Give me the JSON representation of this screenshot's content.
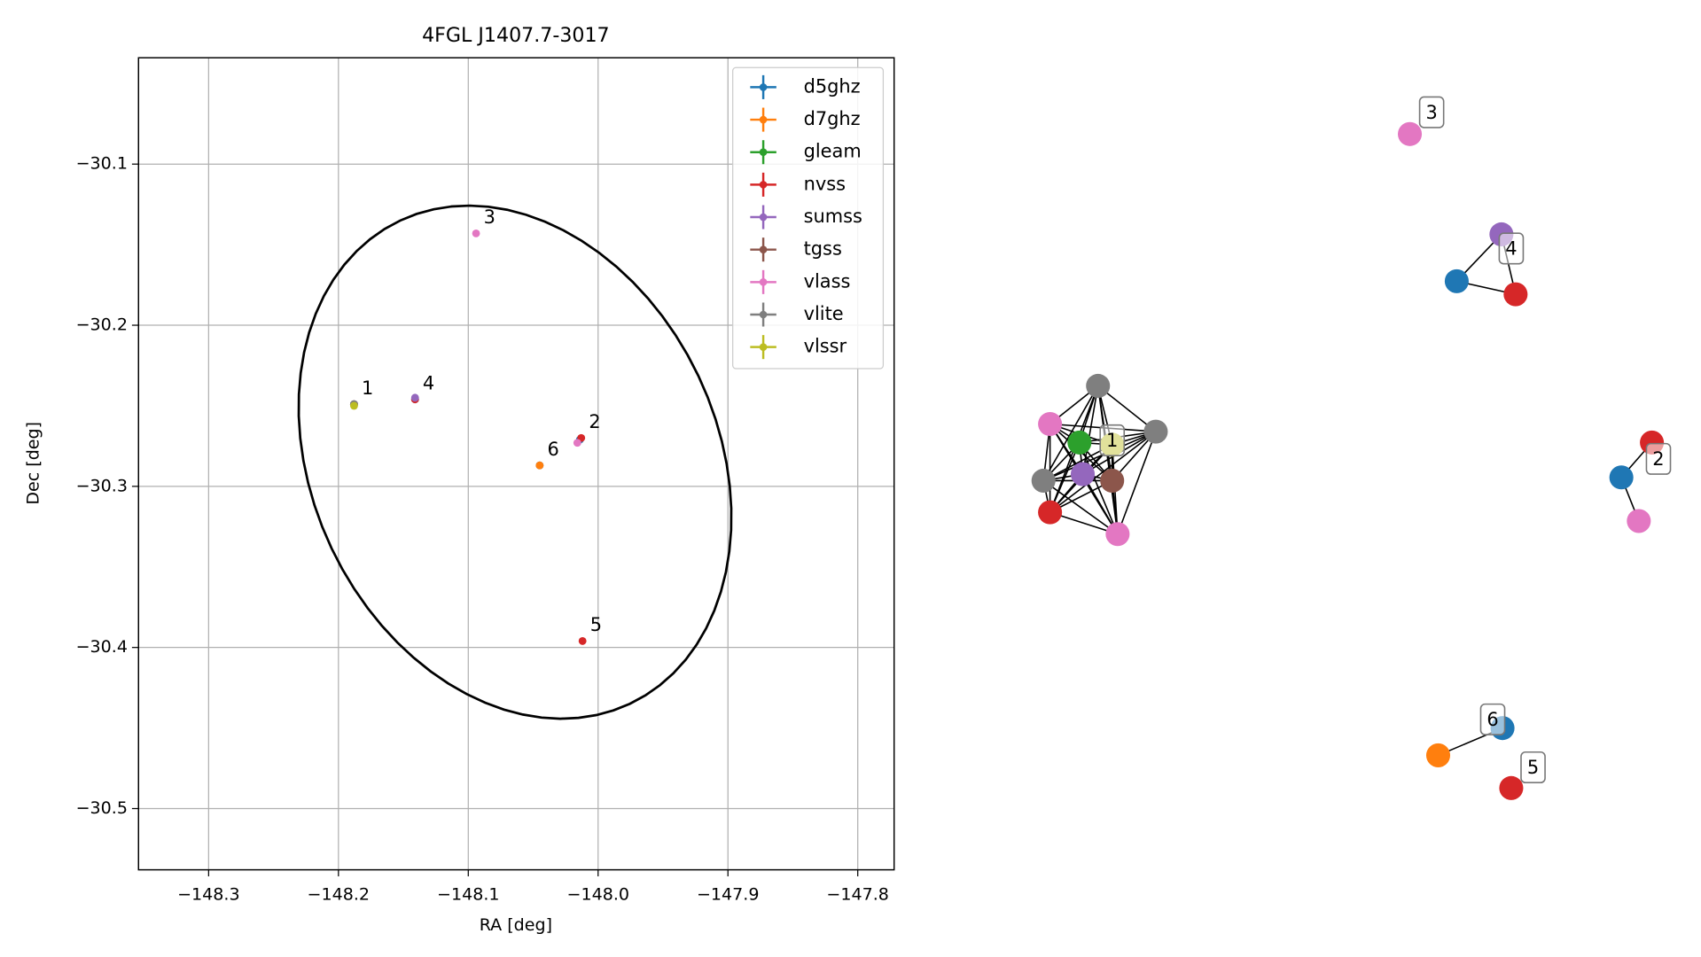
{
  "chart_data": [
    {
      "type": "scatter",
      "title": "4FGL J1407.7-3017",
      "xlabel": "RA [deg]",
      "ylabel": "Dec [deg]",
      "xlim": [
        -148.354,
        -147.772
      ],
      "ylim": [
        -30.538,
        -30.034
      ],
      "grid": true,
      "legend": "upper right",
      "xticks": [
        {
          "value": -148.3,
          "label": "−148.3"
        },
        {
          "value": -148.2,
          "label": "−148.2"
        },
        {
          "value": -148.1,
          "label": "−148.1"
        },
        {
          "value": -148.0,
          "label": "−148.0"
        },
        {
          "value": -147.9,
          "label": "−147.9"
        },
        {
          "value": -147.8,
          "label": "−147.8"
        }
      ],
      "yticks": [
        {
          "value": -30.1,
          "label": "−30.1"
        },
        {
          "value": -30.2,
          "label": "−30.2"
        },
        {
          "value": -30.3,
          "label": "−30.3"
        },
        {
          "value": -30.4,
          "label": "−30.4"
        },
        {
          "value": -30.5,
          "label": "−30.5"
        }
      ],
      "series": [
        {
          "name": "d5ghz",
          "color": "#1f77b4",
          "x": [
            -148.141,
            -148.014,
            -148.045
          ],
          "y": [
            -30.246,
            -30.271,
            -30.287
          ]
        },
        {
          "name": "d7ghz",
          "color": "#ff7f0e",
          "x": [
            -148.045
          ],
          "y": [
            -30.287
          ]
        },
        {
          "name": "gleam",
          "color": "#2ca02c",
          "x": [
            -148.188
          ],
          "y": [
            -30.249
          ]
        },
        {
          "name": "nvss",
          "color": "#d62728",
          "x": [
            -148.188,
            -148.141,
            -148.013,
            -148.012
          ],
          "y": [
            -30.249,
            -30.246,
            -30.27,
            -30.396
          ]
        },
        {
          "name": "sumss",
          "color": "#9467bd",
          "x": [
            -148.188,
            -148.141
          ],
          "y": [
            -30.249,
            -30.245
          ]
        },
        {
          "name": "tgss",
          "color": "#8c564b",
          "x": [
            -148.188
          ],
          "y": [
            -30.249
          ]
        },
        {
          "name": "vlass",
          "color": "#e377c2",
          "x": [
            -148.188,
            -148.188,
            -148.094,
            -148.016
          ],
          "y": [
            -30.249,
            -30.249,
            -30.143,
            -30.273
          ]
        },
        {
          "name": "vlite",
          "color": "#7f7f7f",
          "x": [
            -148.188,
            -148.188,
            -148.188
          ],
          "y": [
            -30.249,
            -30.249,
            -30.249
          ]
        },
        {
          "name": "vlssr",
          "color": "#bcbd22",
          "x": [
            -148.188
          ],
          "y": [
            -30.25
          ]
        }
      ],
      "ellipse": {
        "center": [
          -148.064,
          -30.285
        ],
        "semi_axes": [
          0.18,
          0.144
        ],
        "angle": -39
      },
      "annotations": [
        {
          "text": "1",
          "x": -148.188,
          "y": -30.249
        },
        {
          "text": "2",
          "x": -148.013,
          "y": -30.27
        },
        {
          "text": "3",
          "x": -148.094,
          "y": -30.143
        },
        {
          "text": "4",
          "x": -148.141,
          "y": -30.246
        },
        {
          "text": "5",
          "x": -148.012,
          "y": -30.396
        },
        {
          "text": "6",
          "x": -148.045,
          "y": -30.287
        }
      ]
    },
    {
      "type": "network",
      "nodes": [
        {
          "catalog": "vlite",
          "x": 0.67,
          "y": 4.46
        },
        {
          "catalog": "vlass",
          "x": 0.23,
          "y": 4.11
        },
        {
          "catalog": "gleam",
          "x": 0.5,
          "y": 3.94
        },
        {
          "catalog": "vlssr",
          "x": 0.8,
          "y": 3.92
        },
        {
          "catalog": "vlite",
          "x": 1.2,
          "y": 4.04
        },
        {
          "catalog": "vlite",
          "x": 0.17,
          "y": 3.59
        },
        {
          "catalog": "sumss",
          "x": 0.53,
          "y": 3.65
        },
        {
          "catalog": "tgss",
          "x": 0.8,
          "y": 3.59
        },
        {
          "catalog": "nvss",
          "x": 0.23,
          "y": 3.3
        },
        {
          "catalog": "vlass",
          "x": 0.85,
          "y": 3.1
        },
        {
          "catalog": "vlass",
          "x": 3.53,
          "y": 6.77
        },
        {
          "catalog": "sumss",
          "x": 4.37,
          "y": 5.85
        },
        {
          "catalog": "d5ghz",
          "x": 3.96,
          "y": 5.42
        },
        {
          "catalog": "nvss",
          "x": 4.5,
          "y": 5.3
        },
        {
          "catalog": "nvss",
          "x": 5.75,
          "y": 3.94
        },
        {
          "catalog": "d5ghz",
          "x": 5.47,
          "y": 3.62
        },
        {
          "catalog": "vlass",
          "x": 5.63,
          "y": 3.22
        },
        {
          "catalog": "d5ghz",
          "x": 4.38,
          "y": 1.32
        },
        {
          "catalog": "d7ghz",
          "x": 3.79,
          "y": 1.07
        },
        {
          "catalog": "nvss",
          "x": 4.46,
          "y": 0.77
        }
      ],
      "edges": [
        [
          0,
          1
        ],
        [
          0,
          2
        ],
        [
          0,
          3
        ],
        [
          0,
          4
        ],
        [
          0,
          5
        ],
        [
          0,
          6
        ],
        [
          0,
          7
        ],
        [
          0,
          8
        ],
        [
          0,
          9
        ],
        [
          1,
          2
        ],
        [
          1,
          3
        ],
        [
          1,
          4
        ],
        [
          1,
          5
        ],
        [
          1,
          6
        ],
        [
          1,
          7
        ],
        [
          1,
          8
        ],
        [
          1,
          9
        ],
        [
          2,
          3
        ],
        [
          2,
          4
        ],
        [
          2,
          5
        ],
        [
          2,
          6
        ],
        [
          2,
          7
        ],
        [
          2,
          8
        ],
        [
          2,
          9
        ],
        [
          3,
          4
        ],
        [
          3,
          5
        ],
        [
          3,
          6
        ],
        [
          3,
          7
        ],
        [
          3,
          8
        ],
        [
          3,
          9
        ],
        [
          4,
          5
        ],
        [
          4,
          6
        ],
        [
          4,
          7
        ],
        [
          4,
          8
        ],
        [
          4,
          9
        ],
        [
          5,
          6
        ],
        [
          5,
          7
        ],
        [
          5,
          8
        ],
        [
          5,
          9
        ],
        [
          6,
          7
        ],
        [
          6,
          8
        ],
        [
          6,
          9
        ],
        [
          7,
          8
        ],
        [
          7,
          9
        ],
        [
          8,
          9
        ],
        [
          11,
          12
        ],
        [
          12,
          13
        ],
        [
          13,
          11
        ],
        [
          14,
          15
        ],
        [
          15,
          16
        ],
        [
          17,
          18
        ]
      ],
      "labels": [
        {
          "text": "1",
          "x": 0.8,
          "y": 3.96
        },
        {
          "text": "3",
          "x": 3.73,
          "y": 6.97
        },
        {
          "text": "4",
          "x": 4.46,
          "y": 5.72
        },
        {
          "text": "2",
          "x": 5.81,
          "y": 3.79
        },
        {
          "text": "6",
          "x": 4.29,
          "y": 1.4
        },
        {
          "text": "5",
          "x": 4.66,
          "y": 0.96
        }
      ]
    }
  ]
}
